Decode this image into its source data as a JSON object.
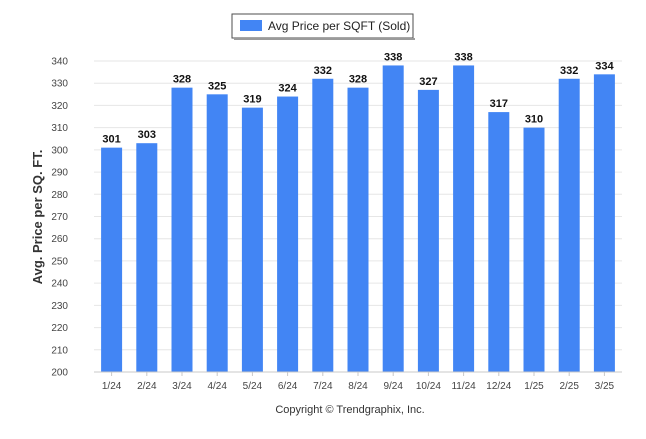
{
  "chart_data": {
    "type": "bar",
    "title": "",
    "legend": {
      "label": "Avg Price per SQFT (Sold)",
      "position": "top-center"
    },
    "ylabel": "Avg. Price per SQ. FT.",
    "xlabel": "",
    "categories": [
      "1/24",
      "2/24",
      "3/24",
      "4/24",
      "5/24",
      "6/24",
      "7/24",
      "8/24",
      "9/24",
      "10/24",
      "11/24",
      "12/24",
      "1/25",
      "2/25",
      "3/25"
    ],
    "series": [
      {
        "name": "Avg Price per SQFT (Sold)",
        "values": [
          301,
          303,
          328,
          325,
          319,
          324,
          332,
          328,
          338,
          327,
          338,
          317,
          310,
          332,
          334
        ]
      }
    ],
    "ylim": [
      200,
      340
    ],
    "yticks": [
      200,
      210,
      220,
      230,
      240,
      250,
      260,
      270,
      280,
      290,
      300,
      310,
      320,
      330,
      340
    ],
    "grid": true,
    "bar_color": "#4285f4",
    "data_labels": true
  },
  "footer": {
    "copyright": "Copyright © Trendgraphix, Inc."
  }
}
